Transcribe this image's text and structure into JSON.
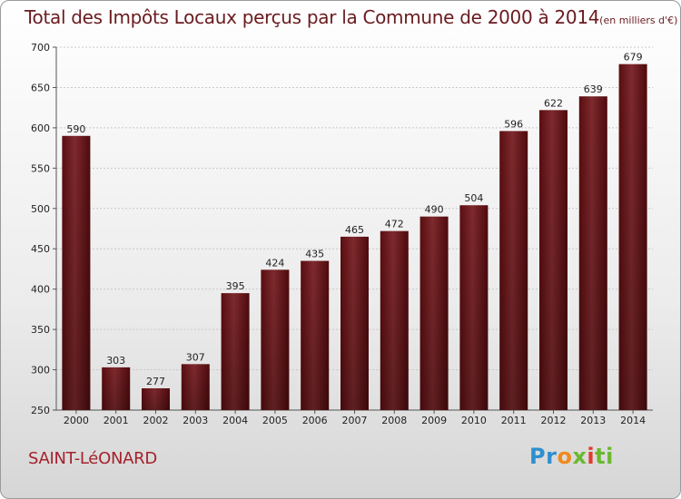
{
  "title": {
    "main": "Total des Impôts Locaux perçus par la Commune de 2000 à 2014",
    "unit": "(en milliers d'€)"
  },
  "commune": "SAINT-LéONARD",
  "logo": {
    "p1": "Pr",
    "p2": "o",
    "p3": "x",
    "p4": "i",
    "p5": "ti"
  },
  "colors": {
    "bar": "#6e1c20",
    "title": "#6a1b1f",
    "commune": "#a4222c"
  },
  "chart_data": {
    "type": "bar",
    "title": "Total des Impôts Locaux perçus par la Commune de 2000 à 2014",
    "ylabel": "",
    "xlabel": "",
    "categories": [
      "2000",
      "2001",
      "2002",
      "2003",
      "2004",
      "2005",
      "2006",
      "2007",
      "2008",
      "2009",
      "2010",
      "2011",
      "2012",
      "2013",
      "2014"
    ],
    "values": [
      590,
      303,
      277,
      307,
      395,
      424,
      435,
      465,
      472,
      490,
      504,
      596,
      622,
      639,
      679
    ],
    "ylim": [
      250,
      700
    ],
    "yticks": [
      250,
      300,
      350,
      400,
      450,
      500,
      550,
      600,
      650,
      700
    ],
    "grid": true,
    "data_labels": true
  }
}
